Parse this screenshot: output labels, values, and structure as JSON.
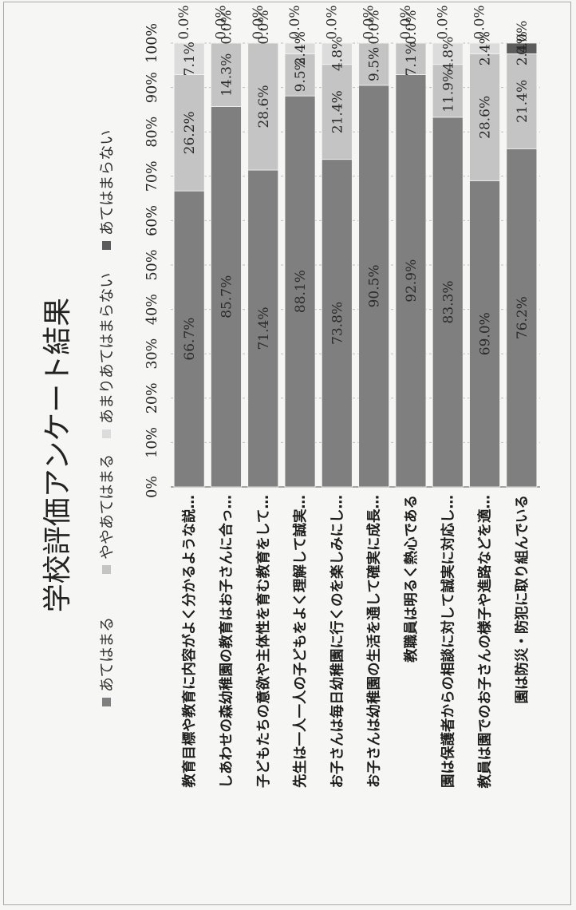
{
  "chart_data": {
    "type": "bar",
    "orientation": "horizontal-stacked-percent",
    "title": "学校評価アンケート結果",
    "legend": [
      {
        "name": "あてはまる",
        "color": "#7f7f7f"
      },
      {
        "name": "ややあてはまる",
        "color": "#c4c4c4"
      },
      {
        "name": "あまりあてはまらない",
        "color": "#dcdcdc"
      },
      {
        "name": "あてはまらない",
        "color": "#5c5c5c"
      }
    ],
    "axis_ticks": [
      "0%",
      "10%",
      "20%",
      "30%",
      "40%",
      "50%",
      "60%",
      "70%",
      "80%",
      "90%",
      "100%"
    ],
    "xlim": [
      0,
      100
    ],
    "grid": true,
    "categories": [
      "教育目標や教育に内容がよく分かるような説…",
      "しあわせの森幼稚園の教育はお子さんに合っ…",
      "子どもたちの意欲や主体性を育む教育をして…",
      "先生は一人一人の子どもをよく理解して誠実…",
      "お子さんは毎日幼稚園に行くのを楽しみにし…",
      "お子さんは幼稚園の生活を通して確実に成長…",
      "教職員は明るく熱心である",
      "園は保護者からの相談に対して誠実に対応し…",
      "教員は園でのお子さんの様子や進路などを適…",
      "園は防災・防犯に取り組んでいる"
    ],
    "series": [
      {
        "name": "あてはまる",
        "values": [
          66.7,
          85.7,
          71.4,
          88.1,
          73.8,
          90.5,
          92.9,
          83.3,
          69.0,
          76.2
        ],
        "labels": [
          "66.7%",
          "85.7%",
          "71.4%",
          "88.1%",
          "73.8%",
          "90.5%",
          "92.9%",
          "83.3%",
          "69.0%",
          "76.2%"
        ]
      },
      {
        "name": "ややあてはまる",
        "values": [
          26.2,
          14.3,
          28.6,
          9.5,
          21.4,
          9.5,
          7.1,
          11.9,
          28.6,
          21.4
        ],
        "labels": [
          "26.2%",
          "14.3%",
          "28.6%",
          "9.5%",
          "21.4%",
          "9.5%",
          "7.1%",
          "11.9%",
          "28.6%",
          "21.4%"
        ]
      },
      {
        "name": "あまりあてはまらない",
        "values": [
          7.1,
          0.0,
          0.0,
          2.4,
          4.8,
          0.0,
          0.0,
          4.8,
          2.4,
          0.0
        ],
        "labels": [
          "7.1%",
          "0.0%",
          "0.0%",
          "2.4%",
          "4.8%",
          "0.0%",
          "0.0%",
          "4.8%",
          "2.4%",
          "0.0%"
        ]
      },
      {
        "name": "あてはまらない",
        "values": [
          0.0,
          0.0,
          0.0,
          0.0,
          0.0,
          0.0,
          0.0,
          0.0,
          0.0,
          2.4
        ],
        "labels": [
          "0.0%",
          "0.0%",
          "0.0%",
          "0.0%",
          "0.0%",
          "0.0%",
          "0.0%",
          "0.0%",
          "0.0%",
          "2.4%"
        ]
      }
    ]
  }
}
